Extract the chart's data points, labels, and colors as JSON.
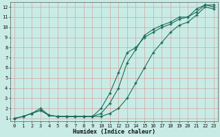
{
  "xlabel": "Humidex (Indice chaleur)",
  "xlim": [
    -0.5,
    23.5
  ],
  "ylim": [
    0.7,
    12.5
  ],
  "xticks": [
    0,
    1,
    2,
    3,
    4,
    5,
    6,
    7,
    8,
    9,
    10,
    11,
    12,
    13,
    14,
    15,
    16,
    17,
    18,
    19,
    20,
    21,
    22,
    23
  ],
  "yticks": [
    1,
    2,
    3,
    4,
    5,
    6,
    7,
    8,
    9,
    10,
    11,
    12
  ],
  "bg_color": "#c8ece5",
  "grid_color": "#d8a0a0",
  "line_color": "#1a6b5a",
  "line1_x": [
    0,
    1,
    2,
    3,
    4,
    5,
    6,
    7,
    8,
    9,
    10,
    11,
    12,
    13,
    14,
    15,
    16,
    17,
    18,
    19,
    20,
    21,
    22,
    23
  ],
  "line1_y": [
    1.0,
    1.2,
    1.5,
    2.0,
    1.3,
    1.2,
    1.2,
    1.2,
    1.2,
    1.2,
    1.2,
    1.5,
    2.0,
    3.0,
    4.5,
    6.0,
    7.5,
    8.5,
    9.5,
    10.2,
    10.5,
    11.2,
    12.0,
    11.8
  ],
  "line2_x": [
    0,
    1,
    2,
    3,
    4,
    5,
    6,
    7,
    8,
    9,
    10,
    11,
    12,
    13,
    14,
    15,
    16,
    17,
    18,
    19,
    20,
    21,
    22,
    23
  ],
  "line2_y": [
    1.0,
    1.2,
    1.5,
    1.8,
    1.3,
    1.2,
    1.2,
    1.2,
    1.2,
    1.2,
    2.0,
    3.5,
    5.5,
    7.5,
    8.0,
    9.0,
    9.5,
    10.0,
    10.3,
    10.8,
    11.0,
    11.5,
    12.2,
    12.0
  ],
  "line3_x": [
    0,
    1,
    2,
    3,
    4,
    5,
    6,
    7,
    8,
    9,
    10,
    11,
    12,
    13,
    14,
    15,
    16,
    17,
    18,
    19,
    20,
    21,
    22,
    23
  ],
  "line3_y": [
    1.0,
    1.2,
    1.5,
    1.8,
    1.3,
    1.2,
    1.2,
    1.2,
    1.2,
    1.2,
    1.5,
    2.5,
    4.0,
    6.5,
    7.8,
    9.2,
    9.8,
    10.2,
    10.5,
    11.0,
    11.0,
    11.8,
    12.2,
    12.2
  ]
}
